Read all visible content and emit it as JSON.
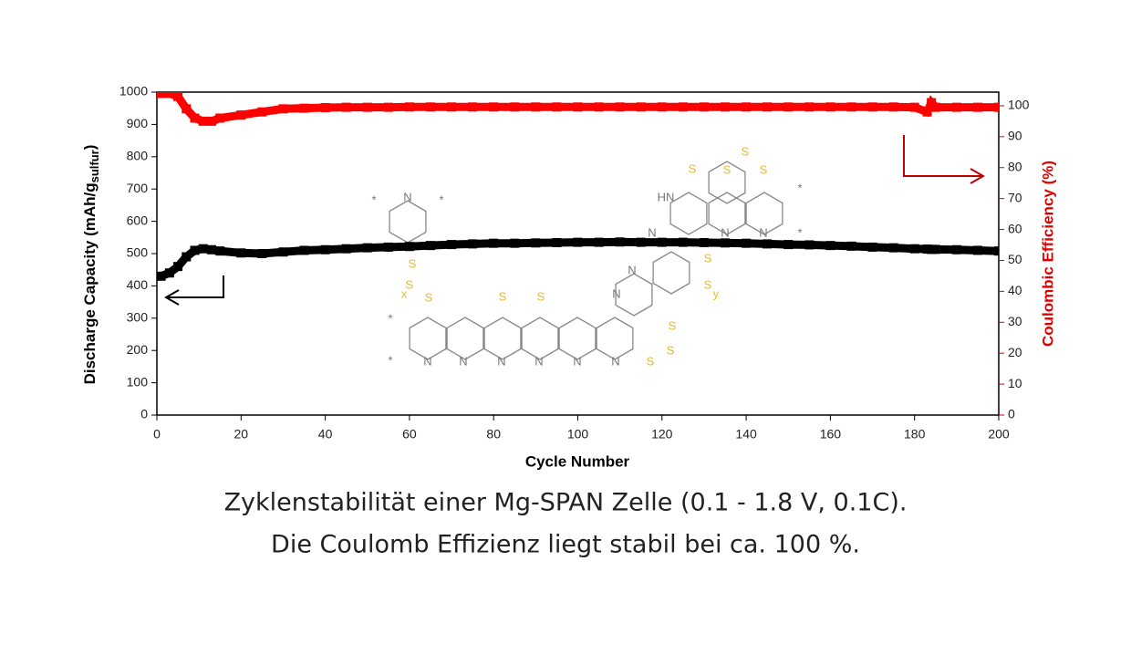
{
  "chart_data": {
    "type": "line",
    "xlabel": "Cycle Number",
    "ylabel": "Discharge Capacity (mAh/g",
    "ylabel_sub": "sulfur",
    "ylabel_end": ")",
    "y2label": "Coulombic Efficiency (%)",
    "x": [
      1,
      3,
      5,
      7,
      9,
      11,
      13,
      15,
      20,
      25,
      30,
      35,
      40,
      45,
      50,
      55,
      60,
      65,
      70,
      75,
      80,
      85,
      90,
      95,
      100,
      105,
      110,
      115,
      120,
      125,
      130,
      135,
      140,
      145,
      150,
      155,
      160,
      165,
      170,
      175,
      180,
      183,
      184,
      185,
      190,
      195,
      200
    ],
    "series": [
      {
        "name": "Discharge Capacity",
        "color": "#000000",
        "values": [
          430,
          440,
          460,
          490,
          510,
          515,
          512,
          508,
          502,
          500,
          505,
          510,
          512,
          515,
          518,
          520,
          522,
          525,
          528,
          530,
          532,
          532,
          533,
          534,
          535,
          535,
          536,
          535,
          535,
          535,
          534,
          533,
          532,
          530,
          528,
          527,
          525,
          523,
          520,
          518,
          515,
          514,
          513,
          513,
          512,
          510,
          508
        ]
      },
      {
        "name": "Coulombic Efficiency",
        "color": "#ff0000",
        "axis": "y2",
        "values": [
          104,
          104,
          103,
          99,
          96,
          95,
          95,
          96,
          97,
          98,
          99,
          99.2,
          99.4,
          99.5,
          99.5,
          99.5,
          99.6,
          99.6,
          99.6,
          99.6,
          99.6,
          99.6,
          99.6,
          99.6,
          99.6,
          99.6,
          99.6,
          99.6,
          99.6,
          99.6,
          99.6,
          99.6,
          99.6,
          99.6,
          99.6,
          99.6,
          99.6,
          99.6,
          99.6,
          99.6,
          99.5,
          98,
          101,
          99.5,
          99.5,
          99.5,
          99.5
        ]
      }
    ],
    "xlim": [
      0,
      200
    ],
    "xticks": [
      0,
      20,
      40,
      60,
      80,
      100,
      120,
      140,
      160,
      180,
      200
    ],
    "ylim": [
      0,
      1000
    ],
    "yticks": [
      0,
      100,
      200,
      300,
      400,
      500,
      600,
      700,
      800,
      900,
      1000
    ],
    "y2lim": [
      0,
      104.4
    ],
    "y2ticks": [
      0,
      10,
      20,
      30,
      40,
      50,
      60,
      70,
      80,
      90,
      100
    ],
    "structure_labels": [
      "*",
      "N",
      "*",
      "S",
      "S",
      "x",
      "S",
      "*",
      "*",
      "N",
      "N",
      "N",
      "N",
      "N",
      "N",
      "S",
      "S",
      "S",
      "S",
      "S",
      "N",
      "N",
      "S",
      "S",
      "y",
      "HN",
      "S",
      "S",
      "S",
      "S",
      "N",
      "N",
      "N",
      "*",
      "*"
    ]
  },
  "caption": [
    "Zyklenstabilität einer Mg-SPAN Zelle (0.1 - 1.8 V, 0.1C).",
    "Die Coulomb Effizienz liegt stabil bei ca. 100 %."
  ]
}
